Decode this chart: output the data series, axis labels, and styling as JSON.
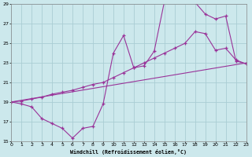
{
  "xlabel": "Windchill (Refroidissement éolien,°C)",
  "xlim": [
    0,
    23
  ],
  "ylim": [
    15,
    29
  ],
  "yticks": [
    15,
    17,
    19,
    21,
    23,
    25,
    27,
    29
  ],
  "xticks": [
    0,
    1,
    2,
    3,
    4,
    5,
    6,
    7,
    8,
    9,
    10,
    11,
    12,
    13,
    14,
    15,
    16,
    17,
    18,
    19,
    20,
    21,
    22,
    23
  ],
  "bg_color": "#cce8ec",
  "grid_color": "#aacdd4",
  "line_color": "#993399",
  "line1_x": [
    0,
    1,
    2,
    3,
    4,
    5,
    6,
    7,
    8,
    9,
    10,
    11,
    12,
    13,
    14,
    15,
    16,
    17,
    18,
    19,
    20,
    21,
    22,
    23
  ],
  "line1_y": [
    19.0,
    18.8,
    18.5,
    17.3,
    16.8,
    16.3,
    15.3,
    16.3,
    16.5,
    18.8,
    24.0,
    25.8,
    22.5,
    22.7,
    24.2,
    29.3,
    29.8,
    29.5,
    29.2,
    28.0,
    27.5,
    27.8,
    23.2,
    22.9
  ],
  "line2_x": [
    0,
    1,
    2,
    3,
    4,
    5,
    6,
    7,
    8,
    9,
    10,
    11,
    12,
    13,
    14,
    15,
    16,
    17,
    18,
    19,
    20,
    21,
    22,
    23
  ],
  "line2_y": [
    19.0,
    19.1,
    19.3,
    19.5,
    19.8,
    20.0,
    20.2,
    20.5,
    20.8,
    21.0,
    21.5,
    22.0,
    22.5,
    23.0,
    23.5,
    24.0,
    24.5,
    25.0,
    26.2,
    26.0,
    24.3,
    24.5,
    23.3,
    22.9
  ],
  "line3_x": [
    0,
    23
  ],
  "line3_y": [
    19.0,
    23.0
  ]
}
